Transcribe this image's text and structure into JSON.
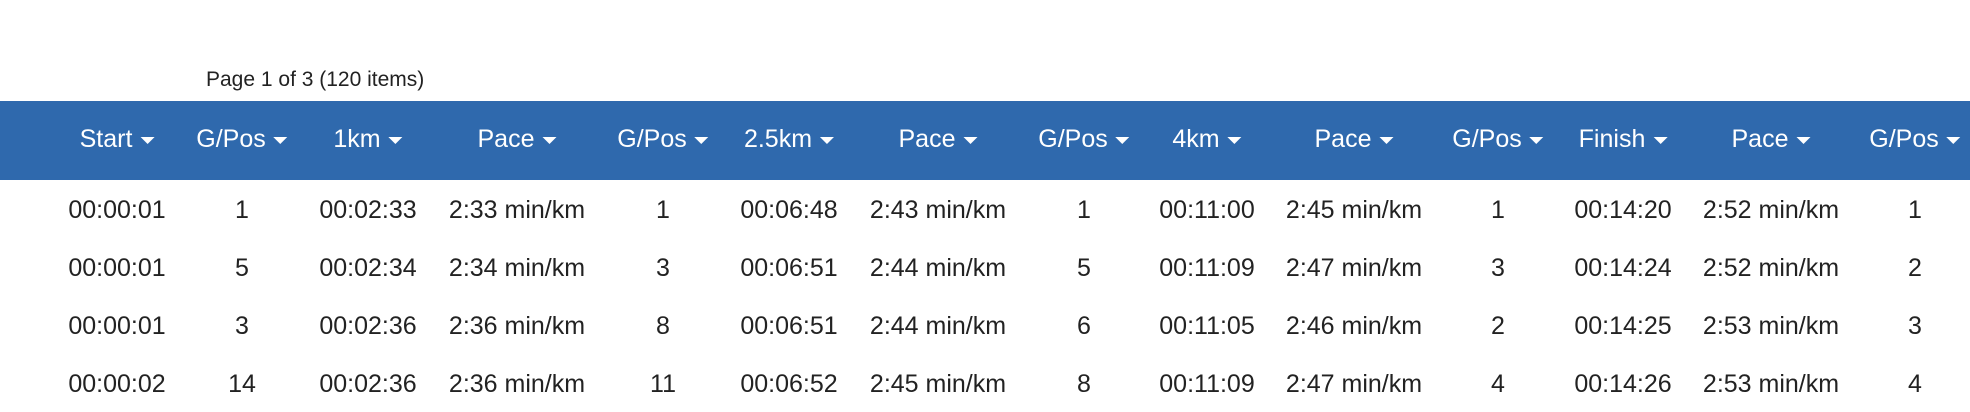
{
  "pager": "Page 1 of 3 (120 items)",
  "table": {
    "columns": [
      "Start",
      "G/Pos",
      "1km",
      "Pace",
      "G/Pos",
      "2.5km",
      "Pace",
      "G/Pos",
      "4km",
      "Pace",
      "G/Pos",
      "Finish",
      "Pace",
      "G/Pos"
    ],
    "rows": [
      [
        "00:00:01",
        1,
        "00:02:33",
        "2:33 min/km",
        1,
        "00:06:48",
        "2:43 min/km",
        1,
        "00:11:00",
        "2:45 min/km",
        1,
        "00:14:20",
        "2:52 min/km",
        1
      ],
      [
        "00:00:01",
        5,
        "00:02:34",
        "2:34 min/km",
        3,
        "00:06:51",
        "2:44 min/km",
        5,
        "00:11:09",
        "2:47 min/km",
        3,
        "00:14:24",
        "2:52 min/km",
        2
      ],
      [
        "00:00:01",
        3,
        "00:02:36",
        "2:36 min/km",
        8,
        "00:06:51",
        "2:44 min/km",
        6,
        "00:11:05",
        "2:46 min/km",
        2,
        "00:14:25",
        "2:53 min/km",
        3
      ],
      [
        "00:00:02",
        14,
        "00:02:36",
        "2:36 min/km",
        11,
        "00:06:52",
        "2:45 min/km",
        8,
        "00:11:09",
        "2:47 min/km",
        4,
        "00:14:26",
        "2:53 min/km",
        4
      ]
    ]
  }
}
